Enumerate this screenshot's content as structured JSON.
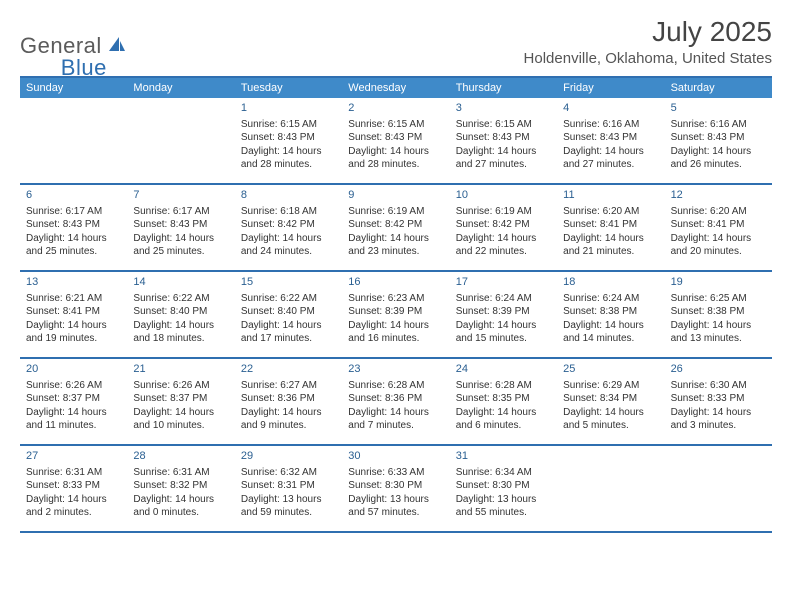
{
  "brand": {
    "word1": "General",
    "word2": "Blue"
  },
  "title": "July 2025",
  "location": "Holdenville, Oklahoma, United States",
  "colors": {
    "header_bg": "#3f8ac9",
    "rule": "#2f6fb0",
    "daynum": "#2a5f91",
    "text": "#333333",
    "brand_gray": "#5b5b5b",
    "brand_blue": "#2f6fb0"
  },
  "fonts": {
    "title_size": 28,
    "location_size": 15,
    "dayheader_size": 11,
    "cell_size": 10
  },
  "day_names": [
    "Sunday",
    "Monday",
    "Tuesday",
    "Wednesday",
    "Thursday",
    "Friday",
    "Saturday"
  ],
  "weeks": [
    [
      null,
      null,
      {
        "n": "1",
        "sunrise": "Sunrise: 6:15 AM",
        "sunset": "Sunset: 8:43 PM",
        "daylight": "Daylight: 14 hours and 28 minutes."
      },
      {
        "n": "2",
        "sunrise": "Sunrise: 6:15 AM",
        "sunset": "Sunset: 8:43 PM",
        "daylight": "Daylight: 14 hours and 28 minutes."
      },
      {
        "n": "3",
        "sunrise": "Sunrise: 6:15 AM",
        "sunset": "Sunset: 8:43 PM",
        "daylight": "Daylight: 14 hours and 27 minutes."
      },
      {
        "n": "4",
        "sunrise": "Sunrise: 6:16 AM",
        "sunset": "Sunset: 8:43 PM",
        "daylight": "Daylight: 14 hours and 27 minutes."
      },
      {
        "n": "5",
        "sunrise": "Sunrise: 6:16 AM",
        "sunset": "Sunset: 8:43 PM",
        "daylight": "Daylight: 14 hours and 26 minutes."
      }
    ],
    [
      {
        "n": "6",
        "sunrise": "Sunrise: 6:17 AM",
        "sunset": "Sunset: 8:43 PM",
        "daylight": "Daylight: 14 hours and 25 minutes."
      },
      {
        "n": "7",
        "sunrise": "Sunrise: 6:17 AM",
        "sunset": "Sunset: 8:43 PM",
        "daylight": "Daylight: 14 hours and 25 minutes."
      },
      {
        "n": "8",
        "sunrise": "Sunrise: 6:18 AM",
        "sunset": "Sunset: 8:42 PM",
        "daylight": "Daylight: 14 hours and 24 minutes."
      },
      {
        "n": "9",
        "sunrise": "Sunrise: 6:19 AM",
        "sunset": "Sunset: 8:42 PM",
        "daylight": "Daylight: 14 hours and 23 minutes."
      },
      {
        "n": "10",
        "sunrise": "Sunrise: 6:19 AM",
        "sunset": "Sunset: 8:42 PM",
        "daylight": "Daylight: 14 hours and 22 minutes."
      },
      {
        "n": "11",
        "sunrise": "Sunrise: 6:20 AM",
        "sunset": "Sunset: 8:41 PM",
        "daylight": "Daylight: 14 hours and 21 minutes."
      },
      {
        "n": "12",
        "sunrise": "Sunrise: 6:20 AM",
        "sunset": "Sunset: 8:41 PM",
        "daylight": "Daylight: 14 hours and 20 minutes."
      }
    ],
    [
      {
        "n": "13",
        "sunrise": "Sunrise: 6:21 AM",
        "sunset": "Sunset: 8:41 PM",
        "daylight": "Daylight: 14 hours and 19 minutes."
      },
      {
        "n": "14",
        "sunrise": "Sunrise: 6:22 AM",
        "sunset": "Sunset: 8:40 PM",
        "daylight": "Daylight: 14 hours and 18 minutes."
      },
      {
        "n": "15",
        "sunrise": "Sunrise: 6:22 AM",
        "sunset": "Sunset: 8:40 PM",
        "daylight": "Daylight: 14 hours and 17 minutes."
      },
      {
        "n": "16",
        "sunrise": "Sunrise: 6:23 AM",
        "sunset": "Sunset: 8:39 PM",
        "daylight": "Daylight: 14 hours and 16 minutes."
      },
      {
        "n": "17",
        "sunrise": "Sunrise: 6:24 AM",
        "sunset": "Sunset: 8:39 PM",
        "daylight": "Daylight: 14 hours and 15 minutes."
      },
      {
        "n": "18",
        "sunrise": "Sunrise: 6:24 AM",
        "sunset": "Sunset: 8:38 PM",
        "daylight": "Daylight: 14 hours and 14 minutes."
      },
      {
        "n": "19",
        "sunrise": "Sunrise: 6:25 AM",
        "sunset": "Sunset: 8:38 PM",
        "daylight": "Daylight: 14 hours and 13 minutes."
      }
    ],
    [
      {
        "n": "20",
        "sunrise": "Sunrise: 6:26 AM",
        "sunset": "Sunset: 8:37 PM",
        "daylight": "Daylight: 14 hours and 11 minutes."
      },
      {
        "n": "21",
        "sunrise": "Sunrise: 6:26 AM",
        "sunset": "Sunset: 8:37 PM",
        "daylight": "Daylight: 14 hours and 10 minutes."
      },
      {
        "n": "22",
        "sunrise": "Sunrise: 6:27 AM",
        "sunset": "Sunset: 8:36 PM",
        "daylight": "Daylight: 14 hours and 9 minutes."
      },
      {
        "n": "23",
        "sunrise": "Sunrise: 6:28 AM",
        "sunset": "Sunset: 8:36 PM",
        "daylight": "Daylight: 14 hours and 7 minutes."
      },
      {
        "n": "24",
        "sunrise": "Sunrise: 6:28 AM",
        "sunset": "Sunset: 8:35 PM",
        "daylight": "Daylight: 14 hours and 6 minutes."
      },
      {
        "n": "25",
        "sunrise": "Sunrise: 6:29 AM",
        "sunset": "Sunset: 8:34 PM",
        "daylight": "Daylight: 14 hours and 5 minutes."
      },
      {
        "n": "26",
        "sunrise": "Sunrise: 6:30 AM",
        "sunset": "Sunset: 8:33 PM",
        "daylight": "Daylight: 14 hours and 3 minutes."
      }
    ],
    [
      {
        "n": "27",
        "sunrise": "Sunrise: 6:31 AM",
        "sunset": "Sunset: 8:33 PM",
        "daylight": "Daylight: 14 hours and 2 minutes."
      },
      {
        "n": "28",
        "sunrise": "Sunrise: 6:31 AM",
        "sunset": "Sunset: 8:32 PM",
        "daylight": "Daylight: 14 hours and 0 minutes."
      },
      {
        "n": "29",
        "sunrise": "Sunrise: 6:32 AM",
        "sunset": "Sunset: 8:31 PM",
        "daylight": "Daylight: 13 hours and 59 minutes."
      },
      {
        "n": "30",
        "sunrise": "Sunrise: 6:33 AM",
        "sunset": "Sunset: 8:30 PM",
        "daylight": "Daylight: 13 hours and 57 minutes."
      },
      {
        "n": "31",
        "sunrise": "Sunrise: 6:34 AM",
        "sunset": "Sunset: 8:30 PM",
        "daylight": "Daylight: 13 hours and 55 minutes."
      },
      null,
      null
    ]
  ]
}
